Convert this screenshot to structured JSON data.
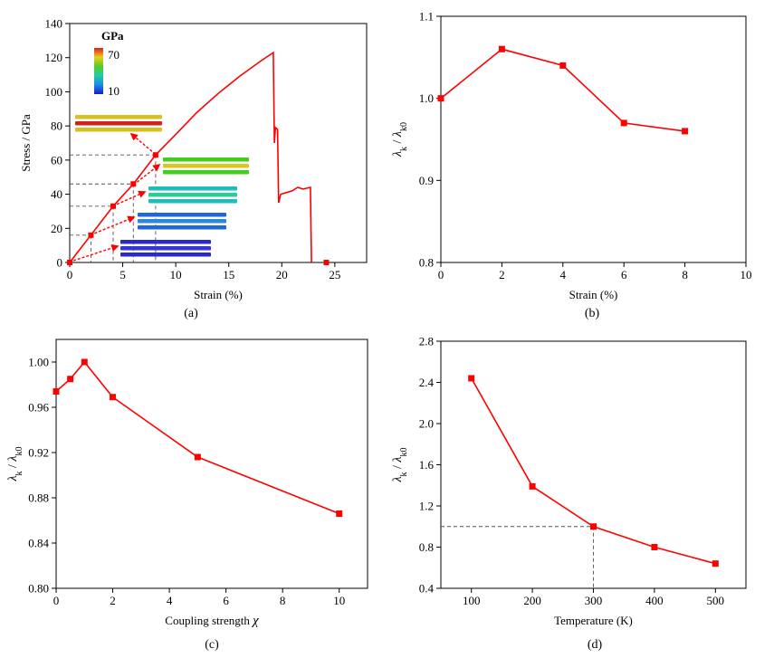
{
  "colors": {
    "series": "#ff0000"
  },
  "chart_data": [
    {
      "id": "a",
      "type": "line",
      "caption": "(a)",
      "xlabel": "Strain (%)",
      "ylabel": "Stress / GPa",
      "xlim": [
        0,
        28
      ],
      "ylim": [
        0,
        140
      ],
      "xticks": [
        0,
        5,
        10,
        15,
        20,
        25
      ],
      "yticks": [
        0,
        20,
        40,
        60,
        80,
        100,
        120,
        140
      ],
      "series": [
        {
          "curve": [
            [
              0,
              0
            ],
            [
              2,
              16
            ],
            [
              4.1,
              33
            ],
            [
              6,
              46
            ],
            [
              8.1,
              63
            ],
            [
              10,
              75
            ],
            [
              12,
              88
            ],
            [
              14,
              99
            ],
            [
              16,
              109
            ],
            [
              18,
              118
            ],
            [
              19.2,
              123
            ],
            [
              19.3,
              70
            ],
            [
              19.4,
              79
            ],
            [
              19.6,
              78
            ],
            [
              19.7,
              35
            ],
            [
              19.9,
              40
            ],
            [
              21,
              42
            ],
            [
              21.5,
              44
            ],
            [
              22,
              43
            ],
            [
              22.7,
              44
            ],
            [
              22.8,
              0
            ]
          ],
          "markers": [
            [
              0,
              0
            ],
            [
              2,
              16
            ],
            [
              4.1,
              33
            ],
            [
              6,
              46
            ],
            [
              8.1,
              63
            ],
            [
              24.2,
              0
            ]
          ]
        }
      ],
      "inset": {
        "title": "GPa",
        "colorbar_max_label": "70",
        "colorbar_min_label": "10"
      }
    },
    {
      "id": "b",
      "type": "line",
      "caption": "(b)",
      "xlabel": "Strain (%)",
      "ylabel": "λk / λk0",
      "xlim": [
        0,
        10
      ],
      "ylim": [
        0.8,
        1.1
      ],
      "xticks": [
        0,
        2,
        4,
        6,
        8,
        10
      ],
      "yticks": [
        0.8,
        0.9,
        1.0,
        1.1
      ],
      "ytick_labels": [
        "0.8",
        "0.9",
        "1.0",
        "1.1"
      ],
      "series": [
        {
          "x": [
            0,
            2,
            4,
            6,
            8
          ],
          "y": [
            1.0,
            1.06,
            1.04,
            0.97,
            0.96
          ]
        }
      ]
    },
    {
      "id": "c",
      "type": "line",
      "caption": "(c)",
      "xlabel": "Coupling strength χ",
      "ylabel": "λk / λk0",
      "xlim": [
        0,
        11
      ],
      "ylim": [
        0.8,
        1.02
      ],
      "xticks": [
        0,
        2,
        4,
        6,
        8,
        10
      ],
      "yticks": [
        0.8,
        0.84,
        0.88,
        0.92,
        0.96,
        1.0
      ],
      "ytick_labels": [
        "0.80",
        "0.84",
        "0.88",
        "0.92",
        "0.96",
        "1.00"
      ],
      "series": [
        {
          "x": [
            0,
            0.5,
            1,
            2,
            5,
            10
          ],
          "y": [
            0.974,
            0.985,
            1.0,
            0.969,
            0.916,
            0.866
          ]
        }
      ]
    },
    {
      "id": "d",
      "type": "line",
      "caption": "(d)",
      "xlabel": "Temperature (K)",
      "ylabel": "λk / λk0",
      "xlim": [
        50,
        550
      ],
      "ylim": [
        0.4,
        2.8
      ],
      "xticks": [
        100,
        200,
        300,
        400,
        500
      ],
      "yticks": [
        0.4,
        0.8,
        1.2,
        1.6,
        2.0,
        2.4,
        2.8
      ],
      "ytick_labels": [
        "0.4",
        "0.8",
        "1.2",
        "1.6",
        "2.0",
        "2.4",
        "2.8"
      ],
      "reference": {
        "x": 300,
        "y": 1.0
      },
      "series": [
        {
          "x": [
            100,
            200,
            300,
            400,
            500
          ],
          "y": [
            2.44,
            1.39,
            1.0,
            0.8,
            0.64
          ]
        }
      ]
    }
  ]
}
